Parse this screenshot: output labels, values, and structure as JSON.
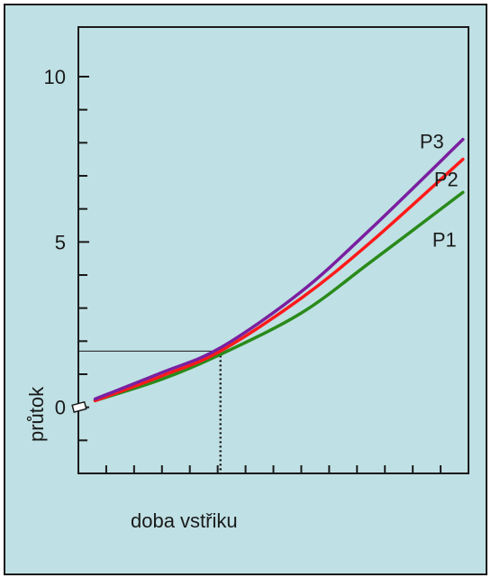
{
  "chart_data": {
    "type": "line",
    "title": "",
    "xlabel": "doba vstřiku",
    "ylabel": "průtok",
    "xlim": [
      0,
      14
    ],
    "ylim": [
      -2,
      11.5
    ],
    "y_ticks": [
      {
        "value": 0,
        "label": "0"
      },
      {
        "value": 5,
        "label": "5"
      },
      {
        "value": 10,
        "label": "10"
      }
    ],
    "y_minor_ticks": [
      -2,
      -1,
      1,
      2,
      3,
      4,
      6,
      7,
      8,
      9,
      10
    ],
    "x_minor_ticks": [
      1,
      2,
      3,
      4,
      5,
      6,
      7,
      8,
      9,
      10,
      11,
      12,
      13,
      14
    ],
    "reference_point": {
      "x": 5.1,
      "y": 1.7
    },
    "grid": false,
    "legend": "inline-labels-right",
    "series": [
      {
        "name": "P1",
        "color": "#2a8a1a",
        "x": [
          0.6,
          3.0,
          5.1,
          8.0,
          10.5,
          13.8
        ],
        "y": [
          0.2,
          0.85,
          1.6,
          2.85,
          4.4,
          6.5
        ]
      },
      {
        "name": "P2",
        "color": "#ff1a1a",
        "x": [
          0.6,
          3.0,
          5.1,
          8.0,
          10.5,
          13.8
        ],
        "y": [
          0.2,
          0.95,
          1.7,
          3.3,
          5.0,
          7.5
        ]
      },
      {
        "name": "P3",
        "color": "#7a1fa0",
        "x": [
          0.6,
          3.0,
          5.1,
          8.0,
          10.5,
          13.8
        ],
        "y": [
          0.25,
          1.05,
          1.8,
          3.5,
          5.4,
          8.1
        ]
      }
    ]
  }
}
